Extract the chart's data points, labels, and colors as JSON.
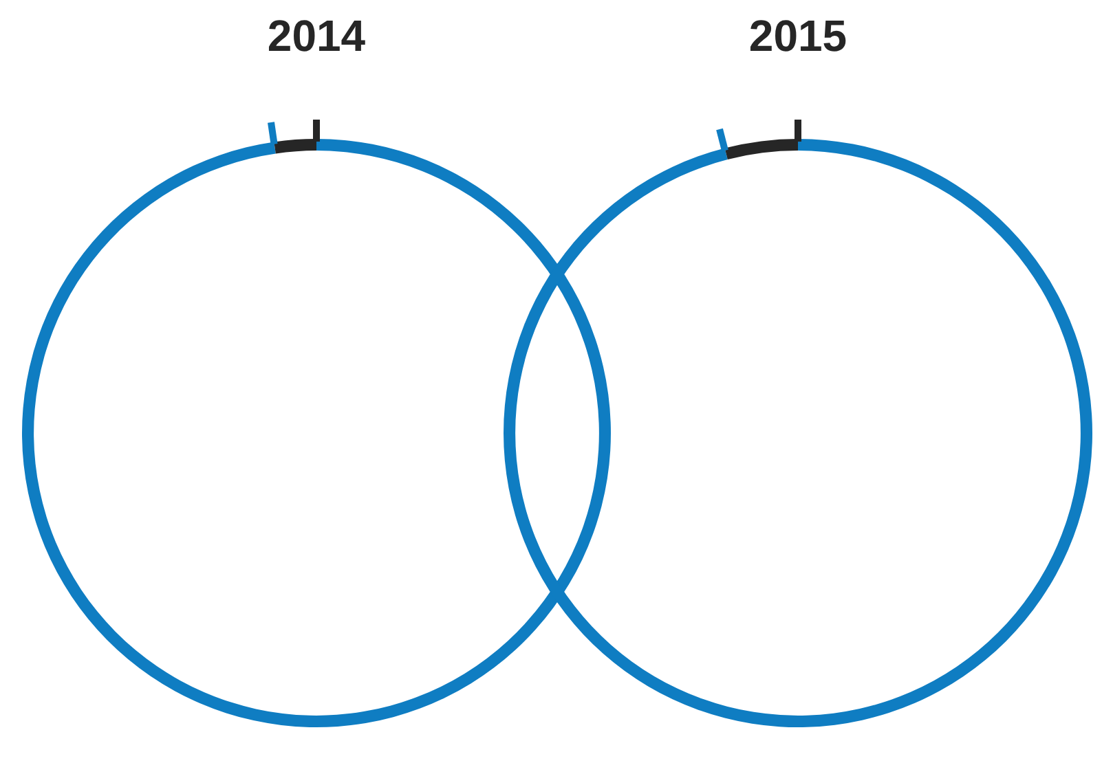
{
  "chart_data": [
    {
      "type": "donut",
      "title": "2014",
      "categories": [
        null,
        null
      ],
      "values": [
        97.7,
        2.3
      ],
      "colors": [
        "#0f7dc2",
        "#262626"
      ]
    },
    {
      "type": "donut",
      "title": "2015",
      "categories": [
        null,
        null
      ],
      "values": [
        96,
        4
      ],
      "colors": [
        "#0f7dc2",
        "#262626"
      ]
    }
  ]
}
